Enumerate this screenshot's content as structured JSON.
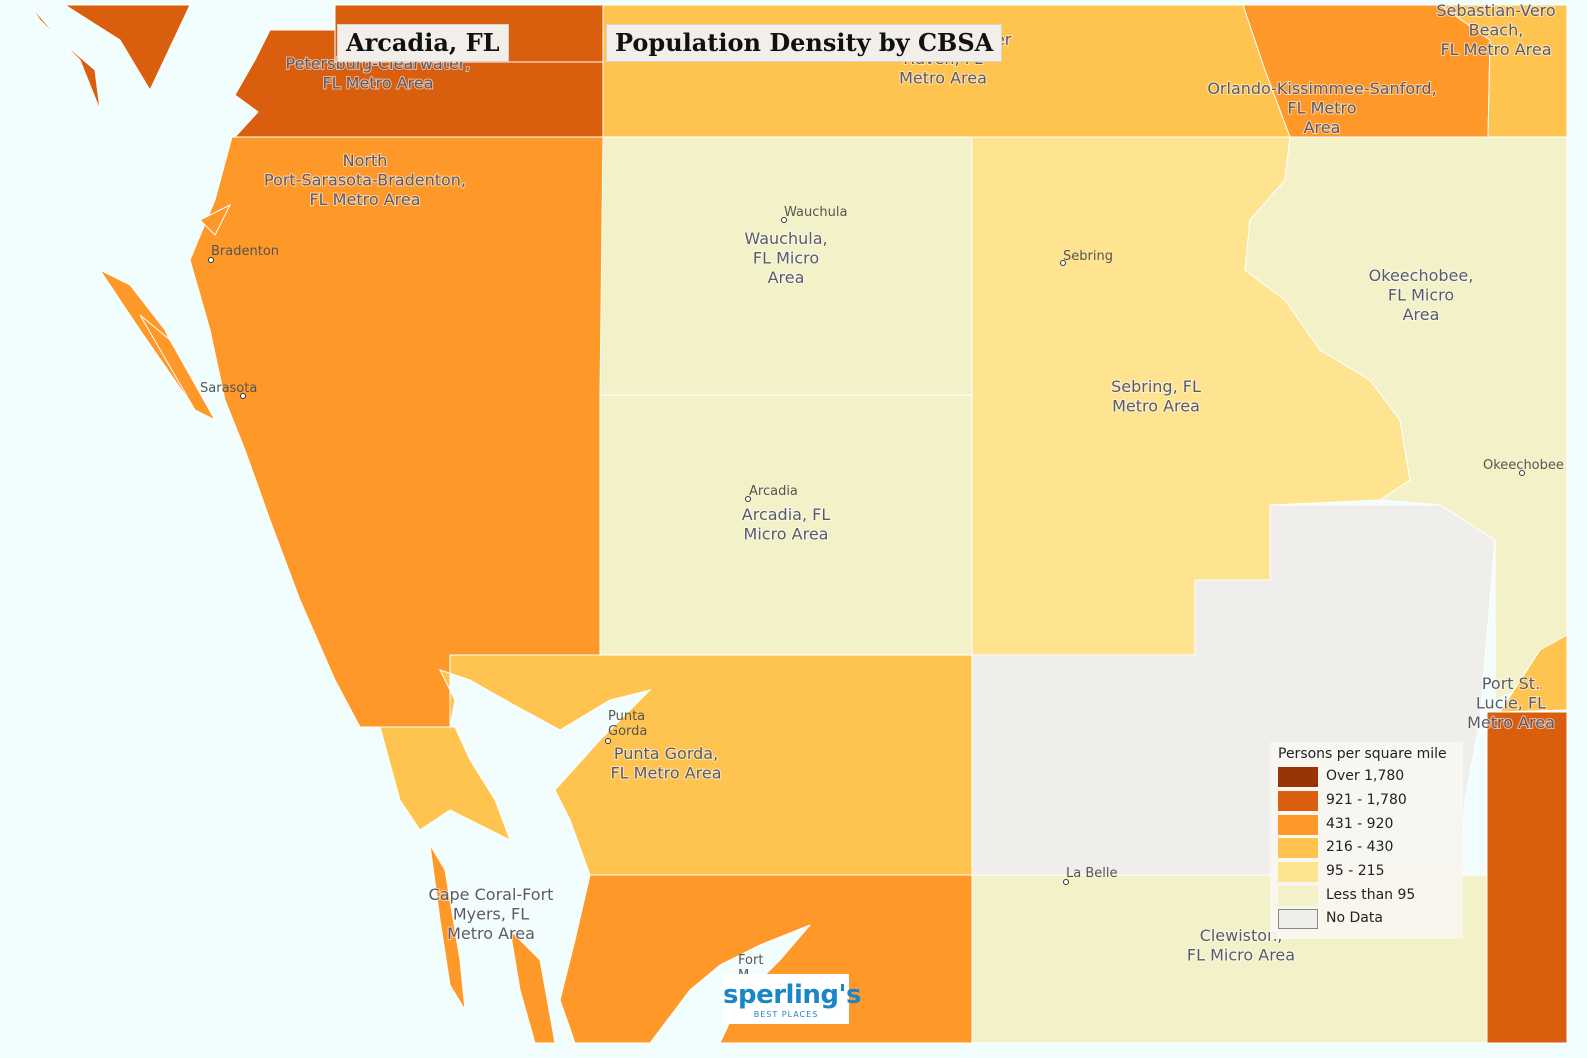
{
  "title": "Arcadia, FL",
  "subtitle": "Population Density by CBSA",
  "colors": {
    "water": "#f2fdfd",
    "over_1780": "#993404",
    "d921_1780": "#d95f0e",
    "d431_920": "#fe9929",
    "d216_430": "#fec44f",
    "d95_215": "#fee391",
    "lt95": "#f3f1c8",
    "no_data": "#f0eeea"
  },
  "regions": {
    "tampa": "Petersburg-Clearwater,\nFL Metro Area",
    "lakeland": "Haven, FL\nMetro Area",
    "lakeland_top": "Winter",
    "orlando": "Orlando-Kissimmee-Sanford,\nFL Metro\nArea",
    "sebastian": "Sebastian-Vero\nBeach,\nFL Metro Area",
    "north_port": "North\nPort-Sarasota-Bradenton,\nFL Metro Area",
    "wauchula": "Wauchula,\nFL Micro\nArea",
    "sebring": "Sebring, FL\nMetro Area",
    "okeechobee": "Okeechobee,\nFL Micro\nArea",
    "arcadia": "Arcadia, FL\nMicro Area",
    "punta_gorda": "Punta Gorda,\nFL Metro Area",
    "port_st_lucie": "Port St.\nLucie, FL\nMetro Area",
    "cape_coral": "Cape Coral-Fort\nMyers, FL\nMetro Area",
    "clewiston": "Clewiston,\nFL Micro Area"
  },
  "cities": {
    "bradenton": "Bradenton",
    "sarasota": "Sarasota",
    "wauchula": "Wauchula",
    "sebring": "Sebring",
    "arcadia": "Arcadia",
    "okeechobee": "Okeechobee",
    "punta_gorda": "Punta\nGorda",
    "la_belle": "La Belle",
    "fort_myers": "Fort\nM"
  },
  "legend": {
    "title": "Persons per square mile",
    "items": [
      {
        "label": "Over 1,780",
        "color": "#993404"
      },
      {
        "label": "921 - 1,780",
        "color": "#d95f0e"
      },
      {
        "label": "431 - 920",
        "color": "#fe9929"
      },
      {
        "label": "216 - 430",
        "color": "#fec44f"
      },
      {
        "label": "95 - 215",
        "color": "#fee391"
      },
      {
        "label": "Less than 95",
        "color": "#f3f1c8"
      },
      {
        "label": "No Data",
        "color": "#f0eeea"
      }
    ]
  },
  "logo": {
    "name": "sperling's",
    "tagline": "BEST PLACES"
  }
}
